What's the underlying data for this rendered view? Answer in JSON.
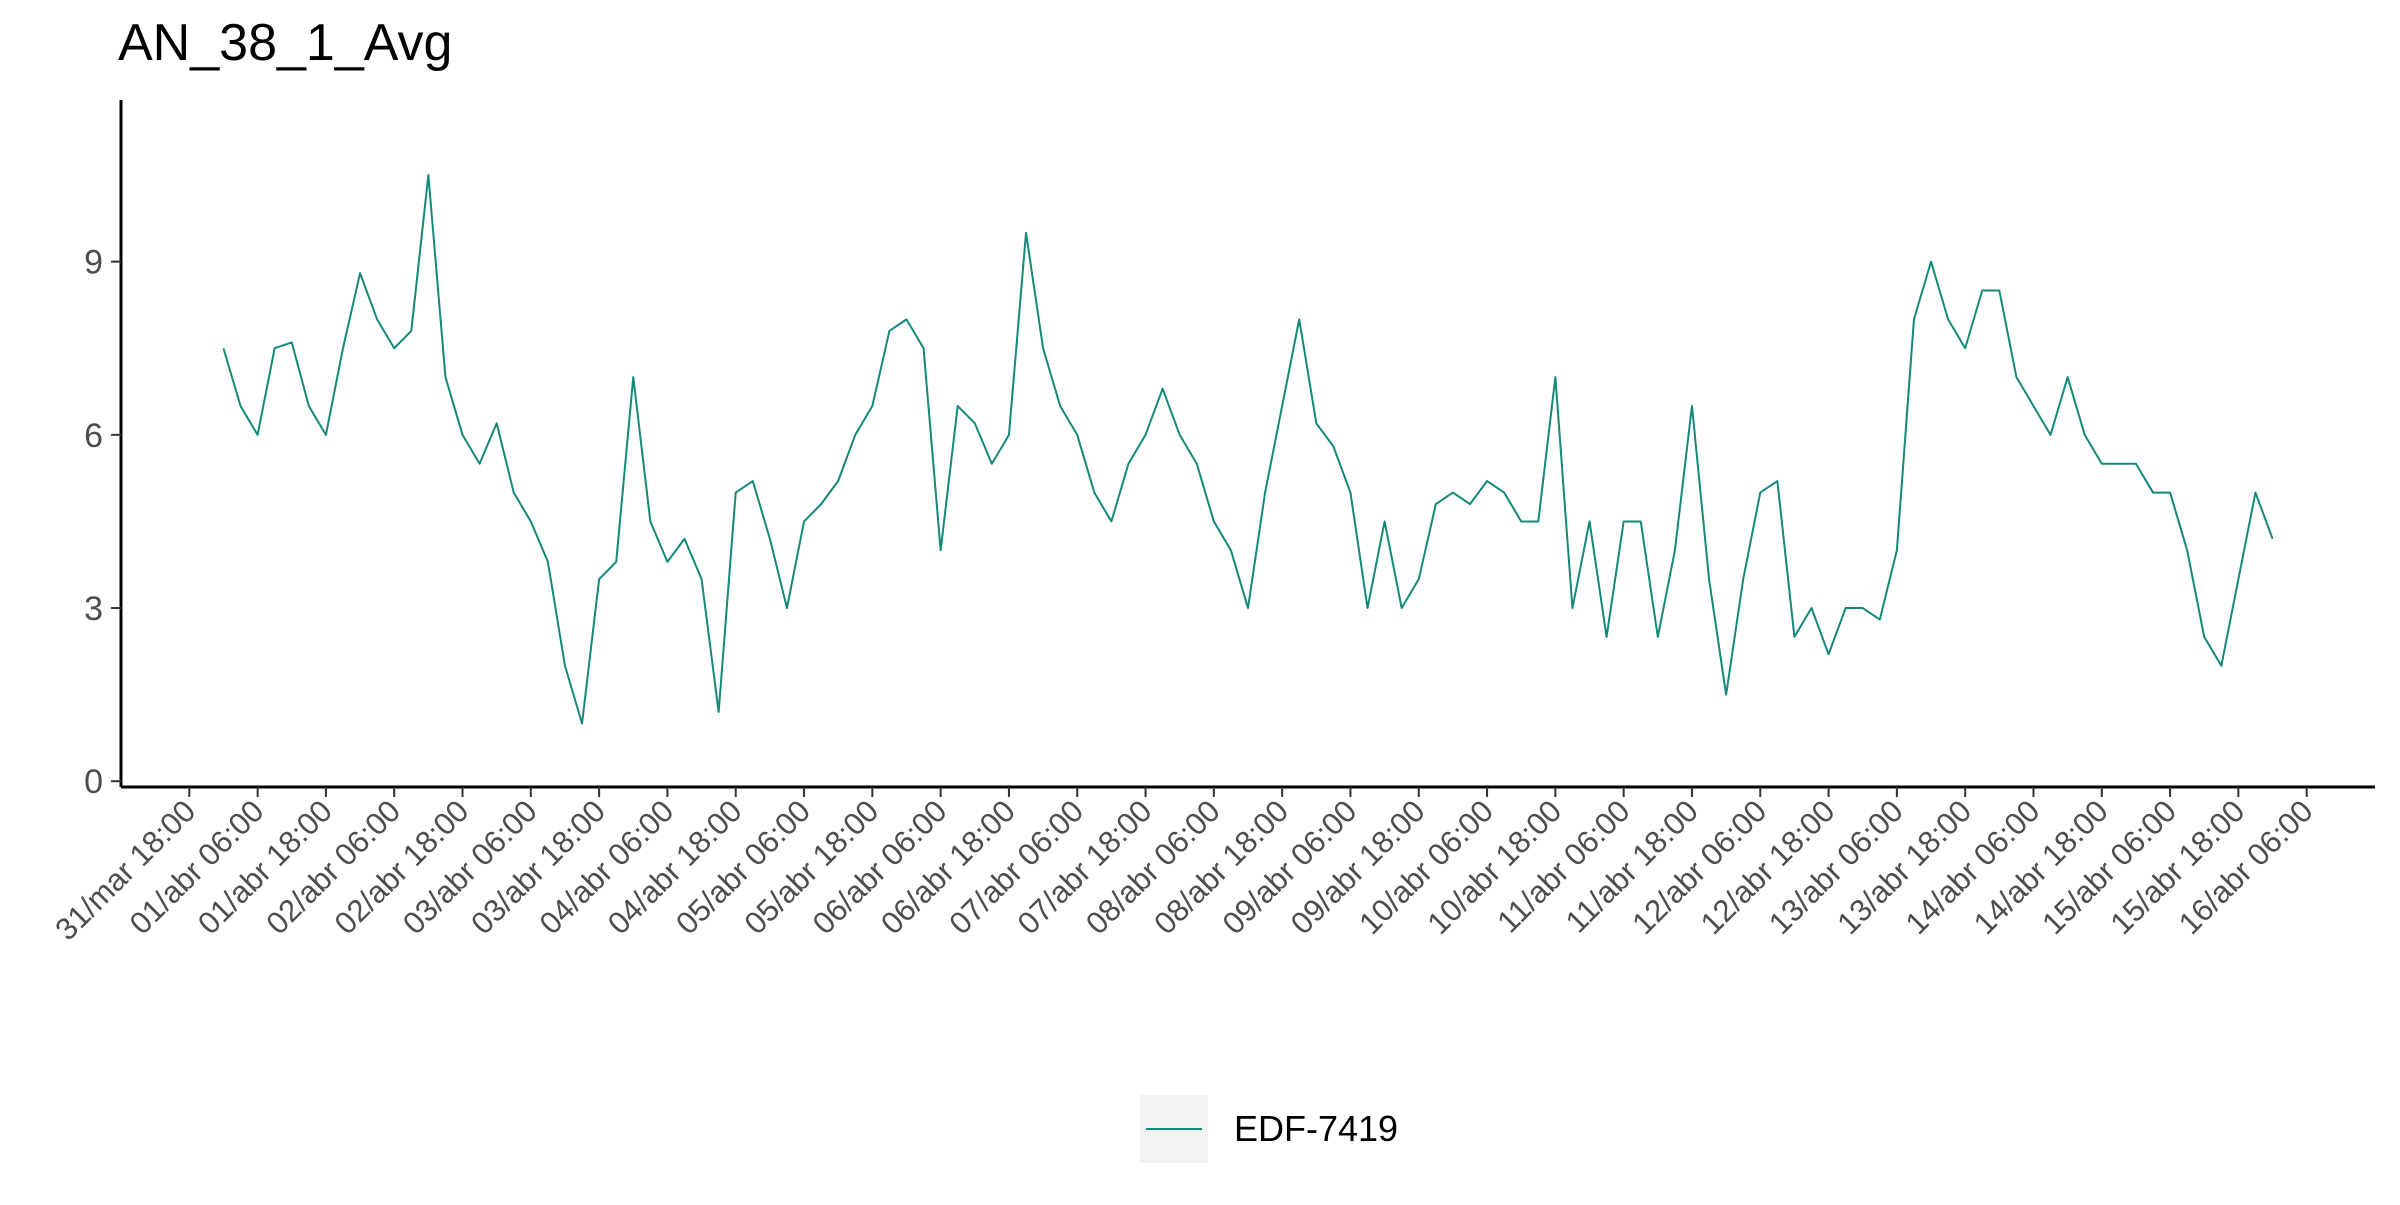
{
  "chart_data": {
    "type": "line",
    "title": "AN_38_1_Avg",
    "x": [
      "01/abr 00:00",
      "01/abr 03:00",
      "01/abr 06:00",
      "01/abr 09:00",
      "01/abr 12:00",
      "01/abr 15:00",
      "01/abr 18:00",
      "01/abr 21:00",
      "02/abr 00:00",
      "02/abr 03:00",
      "02/abr 06:00",
      "02/abr 09:00",
      "02/abr 12:00",
      "02/abr 15:00",
      "02/abr 18:00",
      "02/abr 21:00",
      "03/abr 00:00",
      "03/abr 03:00",
      "03/abr 06:00",
      "03/abr 09:00",
      "03/abr 12:00",
      "03/abr 15:00",
      "03/abr 18:00",
      "03/abr 21:00",
      "04/abr 00:00",
      "04/abr 03:00",
      "04/abr 06:00",
      "04/abr 09:00",
      "04/abr 12:00",
      "04/abr 15:00",
      "04/abr 18:00",
      "04/abr 21:00",
      "05/abr 00:00",
      "05/abr 03:00",
      "05/abr 06:00",
      "05/abr 09:00",
      "05/abr 12:00",
      "05/abr 15:00",
      "05/abr 18:00",
      "05/abr 21:00",
      "06/abr 00:00",
      "06/abr 03:00",
      "06/abr 06:00",
      "06/abr 09:00",
      "06/abr 12:00",
      "06/abr 15:00",
      "06/abr 18:00",
      "06/abr 21:00",
      "07/abr 00:00",
      "07/abr 03:00",
      "07/abr 06:00",
      "07/abr 09:00",
      "07/abr 12:00",
      "07/abr 15:00",
      "07/abr 18:00",
      "07/abr 21:00",
      "08/abr 00:00",
      "08/abr 03:00",
      "08/abr 06:00",
      "08/abr 09:00",
      "08/abr 12:00",
      "08/abr 15:00",
      "08/abr 18:00",
      "08/abr 21:00",
      "09/abr 00:00",
      "09/abr 03:00",
      "09/abr 06:00",
      "09/abr 09:00",
      "09/abr 12:00",
      "09/abr 15:00",
      "09/abr 18:00",
      "09/abr 21:00",
      "10/abr 00:00",
      "10/abr 03:00",
      "10/abr 06:00",
      "10/abr 09:00",
      "10/abr 12:00",
      "10/abr 15:00",
      "10/abr 18:00",
      "10/abr 21:00",
      "11/abr 00:00",
      "11/abr 03:00",
      "11/abr 06:00",
      "11/abr 09:00",
      "11/abr 12:00",
      "11/abr 15:00",
      "11/abr 18:00",
      "11/abr 21:00",
      "12/abr 00:00",
      "12/abr 03:00",
      "12/abr 06:00",
      "12/abr 09:00",
      "12/abr 12:00",
      "12/abr 15:00",
      "12/abr 18:00",
      "12/abr 21:00",
      "13/abr 00:00",
      "13/abr 03:00",
      "13/abr 06:00",
      "13/abr 09:00",
      "13/abr 12:00",
      "13/abr 15:00",
      "13/abr 18:00",
      "13/abr 21:00",
      "14/abr 00:00",
      "14/abr 03:00",
      "14/abr 06:00",
      "14/abr 09:00",
      "14/abr 12:00",
      "14/abr 15:00",
      "14/abr 18:00",
      "14/abr 21:00",
      "15/abr 00:00",
      "15/abr 03:00",
      "15/abr 06:00",
      "15/abr 09:00",
      "15/abr 12:00",
      "15/abr 15:00",
      "15/abr 18:00",
      "15/abr 21:00",
      "16/abr 00:00"
    ],
    "series": [
      {
        "name": "EDF-7419",
        "color": "#14897a",
        "values": [
          7.5,
          6.5,
          6.0,
          7.5,
          7.6,
          6.5,
          6.0,
          7.5,
          8.8,
          8.0,
          7.5,
          7.8,
          10.5,
          7.0,
          6.0,
          5.5,
          6.2,
          5.0,
          4.5,
          3.8,
          2.0,
          1.0,
          3.5,
          3.8,
          7.0,
          4.5,
          3.8,
          4.2,
          3.5,
          1.2,
          5.0,
          5.2,
          4.2,
          3.0,
          4.5,
          4.8,
          5.2,
          6.0,
          6.5,
          7.8,
          8.0,
          7.5,
          4.0,
          6.5,
          6.2,
          5.5,
          6.0,
          9.5,
          7.5,
          6.5,
          6.0,
          5.0,
          4.5,
          5.5,
          6.0,
          6.8,
          6.0,
          5.5,
          4.5,
          4.0,
          3.0,
          5.0,
          6.5,
          8.0,
          6.2,
          5.8,
          5.0,
          3.0,
          4.5,
          3.0,
          3.5,
          4.8,
          5.0,
          4.8,
          5.2,
          5.0,
          4.5,
          4.5,
          7.0,
          3.0,
          4.5,
          2.5,
          4.5,
          4.5,
          2.5,
          4.0,
          6.5,
          3.5,
          1.5,
          3.5,
          5.0,
          5.2,
          2.5,
          3.0,
          2.2,
          3.0,
          3.0,
          2.8,
          4.0,
          8.0,
          9.0,
          8.0,
          7.5,
          8.5,
          8.5,
          7.0,
          6.5,
          6.0,
          7.0,
          6.0,
          5.5,
          5.5,
          5.5,
          5.0,
          5.0,
          4.0,
          2.5,
          2.0,
          3.5,
          5.0,
          4.2
        ]
      }
    ],
    "xlim": [
      "31/mar 06:00",
      "16/abr 18:00"
    ],
    "xticks": [
      "31/mar 18:00",
      "01/abr 06:00",
      "01/abr 18:00",
      "02/abr 06:00",
      "02/abr 18:00",
      "03/abr 06:00",
      "03/abr 18:00",
      "04/abr 06:00",
      "04/abr 18:00",
      "05/abr 06:00",
      "05/abr 18:00",
      "06/abr 06:00",
      "06/abr 18:00",
      "07/abr 06:00",
      "07/abr 18:00",
      "08/abr 06:00",
      "08/abr 18:00",
      "09/abr 06:00",
      "09/abr 18:00",
      "10/abr 06:00",
      "10/abr 18:00",
      "11/abr 06:00",
      "11/abr 18:00",
      "12/abr 06:00",
      "12/abr 18:00",
      "13/abr 06:00",
      "13/abr 18:00",
      "14/abr 06:00",
      "14/abr 18:00",
      "15/abr 06:00",
      "15/abr 18:00",
      "16/abr 06:00"
    ],
    "ylim": [
      -0.1,
      11.8
    ],
    "yticks": [
      0,
      3,
      6,
      9
    ],
    "grid": false,
    "legend": "bottom"
  }
}
